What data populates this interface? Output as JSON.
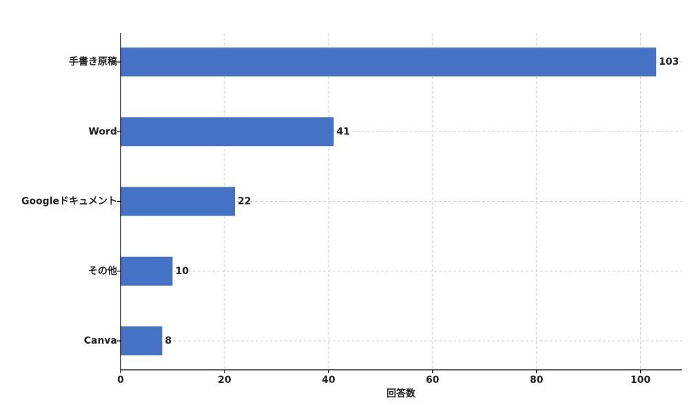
{
  "chart_data": {
    "type": "barh",
    "categories": [
      "手書き原稿",
      "Word",
      "Googleドキュメント",
      "その他",
      "Canva"
    ],
    "values": [
      103,
      41,
      22,
      10,
      8
    ],
    "color": "#4472c4",
    "xlabel": "回答数",
    "xlim": [
      0,
      108
    ],
    "xticks": [
      0,
      20,
      40,
      60,
      80,
      100
    ],
    "grid": true
  }
}
